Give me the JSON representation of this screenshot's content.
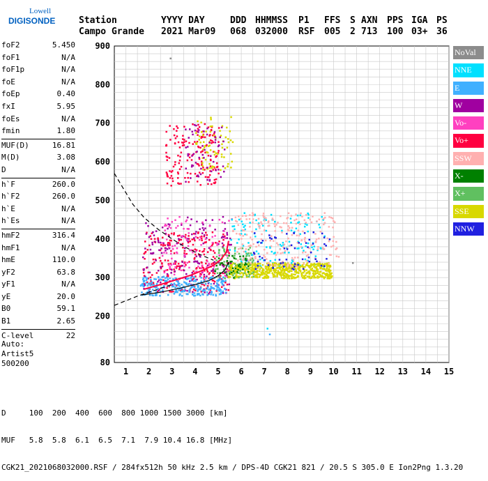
{
  "logo": {
    "line1": "Lowell",
    "line2": "DIGISONDE"
  },
  "header": {
    "labels": [
      "Station",
      "YYYY DAY",
      "DDD",
      "HHMMSS",
      "P1",
      "FFS",
      "S",
      "AXN",
      "PPS",
      "IGA",
      "PS"
    ],
    "values": [
      "Campo Grande",
      "2021 Mar09",
      "068",
      "032000",
      "RSF",
      "005",
      "2",
      "713",
      "100",
      "03+",
      "36"
    ]
  },
  "params": [
    {
      "k": "foF2",
      "v": "5.450"
    },
    {
      "k": "foF1",
      "v": "N/A"
    },
    {
      "k": "foF1p",
      "v": "N/A"
    },
    {
      "k": "foE",
      "v": "N/A"
    },
    {
      "k": "foEp",
      "v": "0.40"
    },
    {
      "k": "fxI",
      "v": "5.95"
    },
    {
      "k": "foEs",
      "v": "N/A"
    },
    {
      "k": "fmin",
      "v": "1.80"
    },
    {
      "k": "MUF(D)",
      "v": "16.81"
    },
    {
      "k": "M(D)",
      "v": "3.08"
    },
    {
      "k": "D",
      "v": "N/A"
    },
    {
      "k": "h`F",
      "v": "260.0"
    },
    {
      "k": "h`F2",
      "v": "260.0"
    },
    {
      "k": "h`E",
      "v": "N/A"
    },
    {
      "k": "h`Es",
      "v": "N/A"
    },
    {
      "k": "hmF2",
      "v": "316.4"
    },
    {
      "k": "hmF1",
      "v": "N/A"
    },
    {
      "k": "hmE",
      "v": "110.0"
    },
    {
      "k": "yF2",
      "v": "63.8"
    },
    {
      "k": "yF1",
      "v": "N/A"
    },
    {
      "k": "yE",
      "v": "20.0"
    },
    {
      "k": "B0",
      "v": "59.1"
    },
    {
      "k": "B1",
      "v": "2.65"
    },
    {
      "k": "C-level",
      "v": "22"
    }
  ],
  "auto": [
    "Auto:",
    "Artist5",
    "500200"
  ],
  "legend": [
    {
      "name": "NoVal",
      "color": "#8c8c8c"
    },
    {
      "name": "NNE",
      "color": "#00e0ff"
    },
    {
      "name": "E",
      "color": "#40b0ff"
    },
    {
      "name": "W",
      "color": "#a000a0"
    },
    {
      "name": "Vo-",
      "color": "#ff40c0"
    },
    {
      "name": "Vo+",
      "color": "#ff0040"
    },
    {
      "name": "SSW",
      "color": "#ffb0b0"
    },
    {
      "name": "X-",
      "color": "#008000"
    },
    {
      "name": "X+",
      "color": "#60c060"
    },
    {
      "name": "SSE",
      "color": "#d8d800"
    },
    {
      "name": "NNW",
      "color": "#2020e0"
    }
  ],
  "footer": {
    "line1": "D     100  200  400  600  800 1000 1500 3000 [km]",
    "line2": "MUF   5.8  5.8  6.1  6.5  7.1  7.9 10.4 16.8 [MHz]",
    "line3": "CGK21_2021068032000.RSF / 284fx512h 50 kHz 2.5 km / DPS-4D CGK21 821 / 20.5 S 305.0 E",
    "version": "Ion2Png 1.3.20"
  },
  "chart_data": {
    "type": "scatter",
    "xlim": [
      0.5,
      15
    ],
    "ylim": [
      80,
      900
    ],
    "x_ticks": [
      1,
      2,
      3,
      4,
      5,
      6,
      7,
      8,
      9,
      10,
      11,
      12,
      13,
      14,
      15
    ],
    "y_ticks": [
      80,
      200,
      300,
      400,
      500,
      600,
      700,
      800,
      900
    ],
    "grid": true,
    "trace_lines": [
      {
        "name": "profile",
        "color": "#000000",
        "style": "solid",
        "x": [
          1.7,
          2.5,
          3.3,
          4.0,
          4.6,
          5.0,
          5.3,
          5.45
        ],
        "y": [
          255,
          262,
          272,
          282,
          292,
          305,
          320,
          340
        ]
      },
      {
        "name": "model",
        "color": "#000000",
        "style": "dashed",
        "x": [
          0.5,
          1.0,
          1.5,
          2.0,
          2.5,
          3.0
        ],
        "y": [
          228,
          240,
          252,
          262,
          272,
          282
        ]
      },
      {
        "name": "model-upper",
        "color": "#000000",
        "style": "dashed",
        "x": [
          0.5,
          0.9,
          1.3,
          1.8,
          2.4,
          3.0,
          3.6,
          4.2,
          4.8
        ],
        "y": [
          570,
          530,
          490,
          455,
          425,
          400,
          378,
          360,
          345
        ]
      },
      {
        "name": "O-trace",
        "color": "#ff0040",
        "style": "solid",
        "x": [
          1.8,
          2.5,
          3.2,
          3.8,
          4.3,
          4.8,
          5.1,
          5.35,
          5.45
        ],
        "y": [
          270,
          282,
          295,
          306,
          318,
          332,
          346,
          365,
          395
        ]
      }
    ],
    "clusters": [
      {
        "series": "Vo+",
        "x": [
          1.7,
          5.5
        ],
        "y": [
          265,
          420
        ],
        "n": 260
      },
      {
        "series": "W",
        "x": [
          1.7,
          5.6
        ],
        "y": [
          260,
          460
        ],
        "n": 180
      },
      {
        "series": "E",
        "x": [
          1.6,
          5.3
        ],
        "y": [
          255,
          305
        ],
        "n": 260
      },
      {
        "series": "NNE",
        "x": [
          5.4,
          9.6
        ],
        "y": [
          330,
          470
        ],
        "n": 140
      },
      {
        "series": "SSE",
        "x": [
          5.4,
          9.9
        ],
        "y": [
          300,
          340
        ],
        "n": 600
      },
      {
        "series": "SSW",
        "x": [
          5.6,
          10.2
        ],
        "y": [
          330,
          470
        ],
        "n": 220
      },
      {
        "series": "NNW",
        "x": [
          6.2,
          9.8
        ],
        "y": [
          320,
          420
        ],
        "n": 60
      },
      {
        "series": "X+",
        "x": [
          4.8,
          6.5
        ],
        "y": [
          300,
          380
        ],
        "n": 80
      },
      {
        "series": "X-",
        "x": [
          4.8,
          6.3
        ],
        "y": [
          300,
          360
        ],
        "n": 40
      },
      {
        "series": "Vo-",
        "x": [
          2.5,
          5.5
        ],
        "y": [
          300,
          460
        ],
        "n": 100
      },
      {
        "series": "Vo+",
        "x": [
          2.7,
          5.0
        ],
        "y": [
          540,
          700
        ],
        "n": 160
      },
      {
        "series": "SSE",
        "x": [
          4.0,
          5.6
        ],
        "y": [
          580,
          720
        ],
        "n": 70
      },
      {
        "series": "W",
        "x": [
          3.5,
          5.3
        ],
        "y": [
          550,
          700
        ],
        "n": 60
      }
    ],
    "isolated_points": [
      {
        "series": "NNE",
        "x": 7.1,
        "y": 170
      },
      {
        "series": "E",
        "x": 7.2,
        "y": 155
      },
      {
        "series": "NoVal",
        "x": 2.9,
        "y": 870
      },
      {
        "series": "NoVal",
        "x": 10.8,
        "y": 340
      }
    ]
  }
}
